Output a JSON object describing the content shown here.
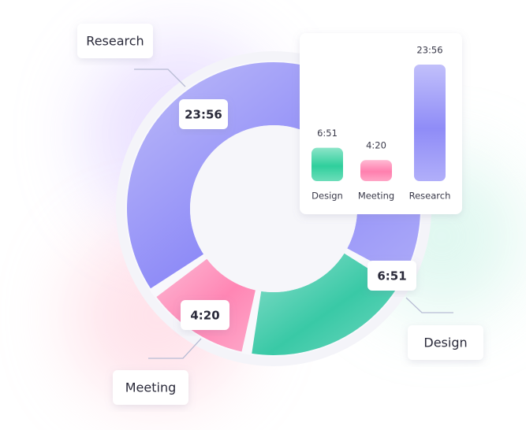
{
  "chart_data": [
    {
      "type": "donut",
      "categories": [
        "Research",
        "Design",
        "Meeting"
      ],
      "values": [
        1436,
        411,
        260
      ],
      "value_labels": [
        "23:56",
        "6:51",
        "4:20"
      ],
      "colors": [
        "#8f8cf7",
        "#39c9a6",
        "#ff86b4"
      ]
    },
    {
      "type": "bar",
      "categories": [
        "Design",
        "Meeting",
        "Research"
      ],
      "values": [
        411,
        260,
        1436
      ],
      "value_labels": [
        "6:51",
        "4:20",
        "23:56"
      ],
      "colors": [
        "#2fcf9c",
        "#ff7fae",
        "#8f8cf7"
      ]
    }
  ]
}
